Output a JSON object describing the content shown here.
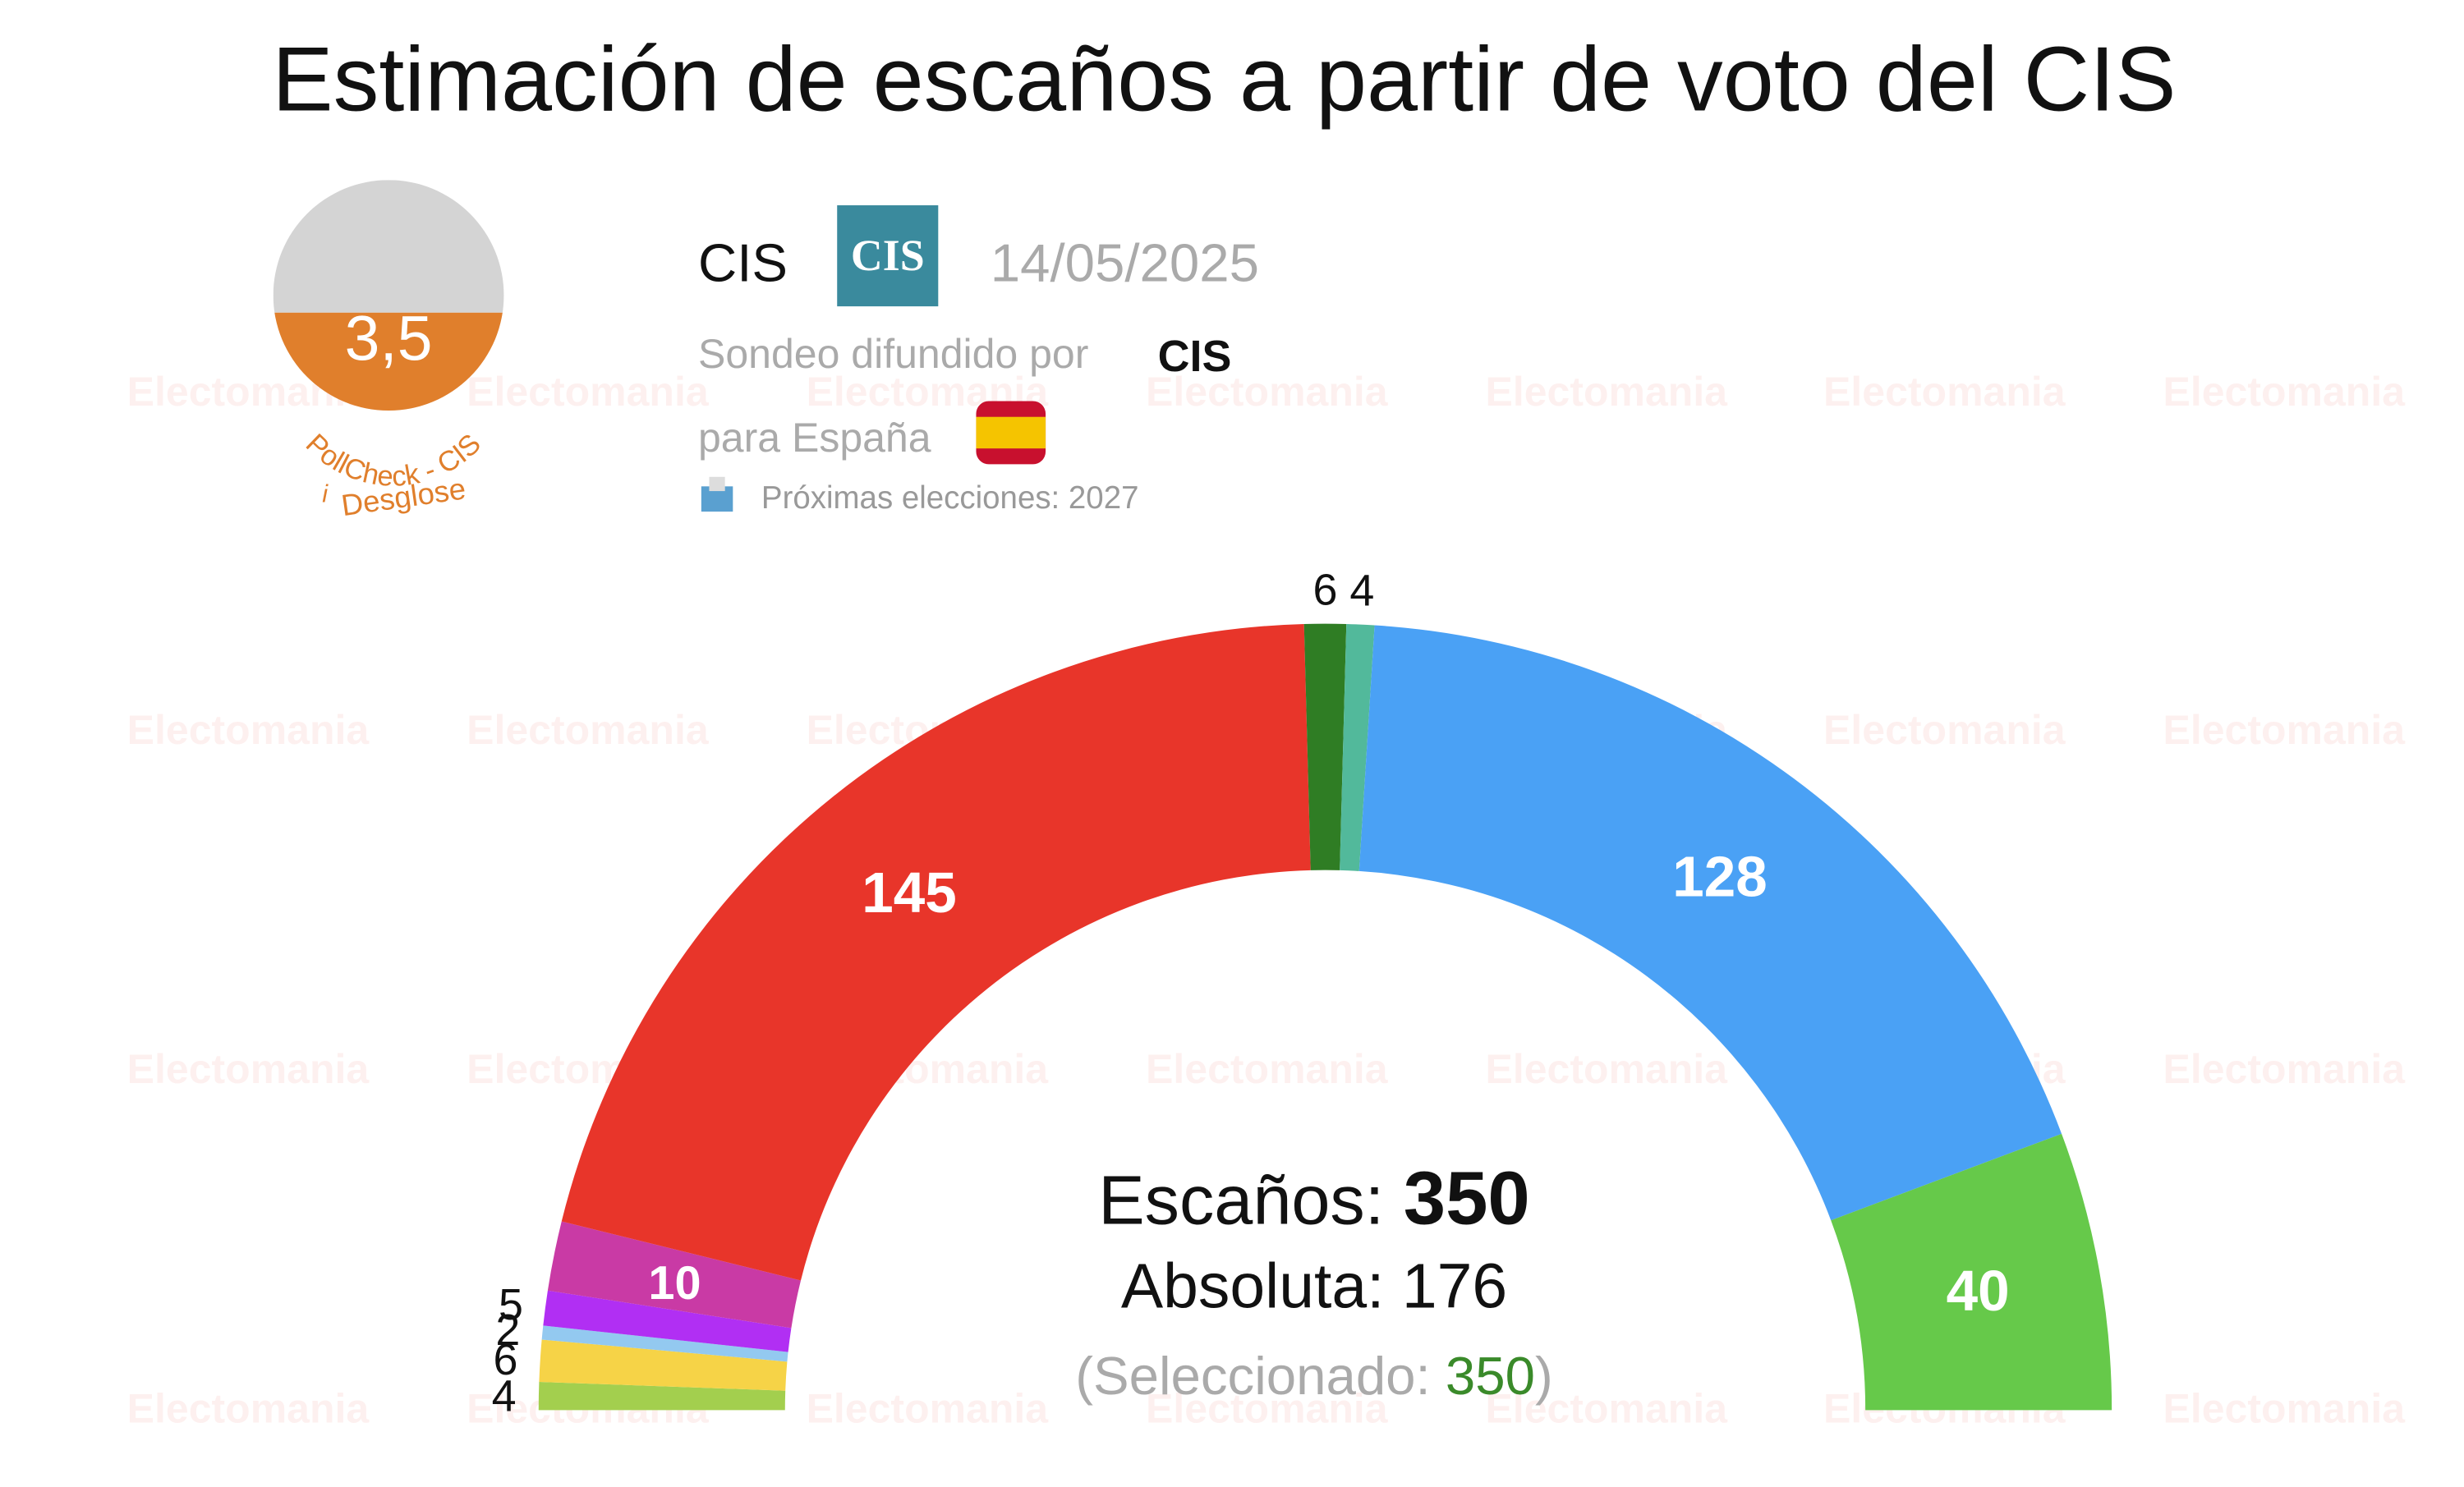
{
  "chart_data": {
    "type": "hemicycle",
    "title": "Estimación de escaños a partir de voto del CIS",
    "values": [
      4,
      6,
      2,
      5,
      10,
      145,
      6,
      4,
      128,
      40
    ],
    "colors": [
      "#a3cf4e",
      "#f6d347",
      "#93c9f0",
      "#b12ff3",
      "#c93aa5",
      "#e8352a",
      "#2f7d24",
      "#52b99b",
      "#4aa1f5",
      "#66c94a"
    ],
    "seats_label": "Escaños:",
    "total": 350,
    "majority_label": "Absoluta:",
    "majority": 176,
    "selected_prefix": "(Seleccionado:",
    "selected": 350,
    "selected_suffix": ")"
  },
  "header": {
    "pollster": "CIS",
    "logo": "CIS",
    "date": "14/05/2025",
    "published_by": "Sondeo difundido por",
    "publisher": "CIS",
    "region": "para España",
    "next_elections": "Próximas elecciones: 2027"
  },
  "badge": {
    "score": "3,5",
    "label": "PollCheck - CIS",
    "info": "i",
    "breakdown": "Desglose"
  },
  "watermark": "Electomania"
}
